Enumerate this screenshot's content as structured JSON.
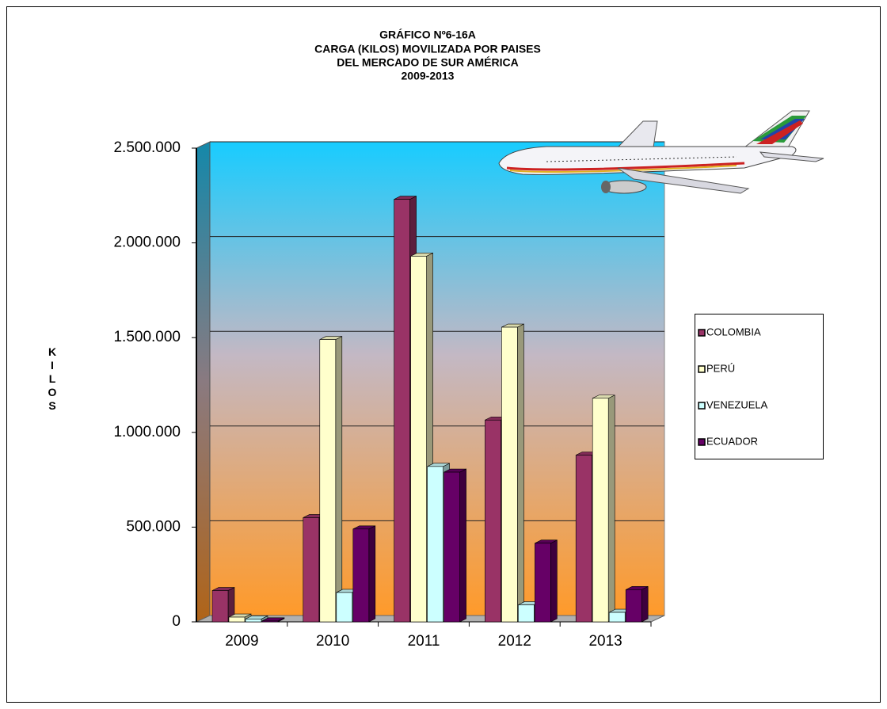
{
  "chart_data": {
    "type": "bar3d",
    "title": [
      "GRÁFICO Nº6-16A",
      "CARGA (KILOS) MOVILIZADA POR PAISES",
      "DEL MERCADO DE SUR AMÉRICA",
      "2009-2013"
    ],
    "y_label": "KILOS",
    "categories": [
      "2009",
      "2010",
      "2011",
      "2012",
      "2013"
    ],
    "series": [
      {
        "name": "COLOMBIA",
        "color": "#993366",
        "values": [
          165000,
          550000,
          2230000,
          1065000,
          880000
        ]
      },
      {
        "name": "PERÚ",
        "color": "#FFFFCC",
        "values": [
          25000,
          1490000,
          1930000,
          1555000,
          1180000
        ]
      },
      {
        "name": "VENEZUELA",
        "color": "#CCFFFF",
        "values": [
          15000,
          155000,
          820000,
          90000,
          50000
        ]
      },
      {
        "name": "ECUADOR",
        "color": "#660066",
        "values": [
          5000,
          490000,
          790000,
          415000,
          170000
        ]
      }
    ],
    "ylim": [
      0,
      2500000
    ],
    "yticks": [
      0,
      {
        "value": 500000,
        "label": "500.000"
      },
      {
        "value": 1000000,
        "label": "1.000.000"
      },
      {
        "value": 1500000,
        "label": "1.500.000"
      },
      {
        "value": 2000000,
        "label": "2.000.000"
      },
      {
        "value": 2500000,
        "label": "2.500.000"
      }
    ],
    "grid": true,
    "legend": "right"
  }
}
